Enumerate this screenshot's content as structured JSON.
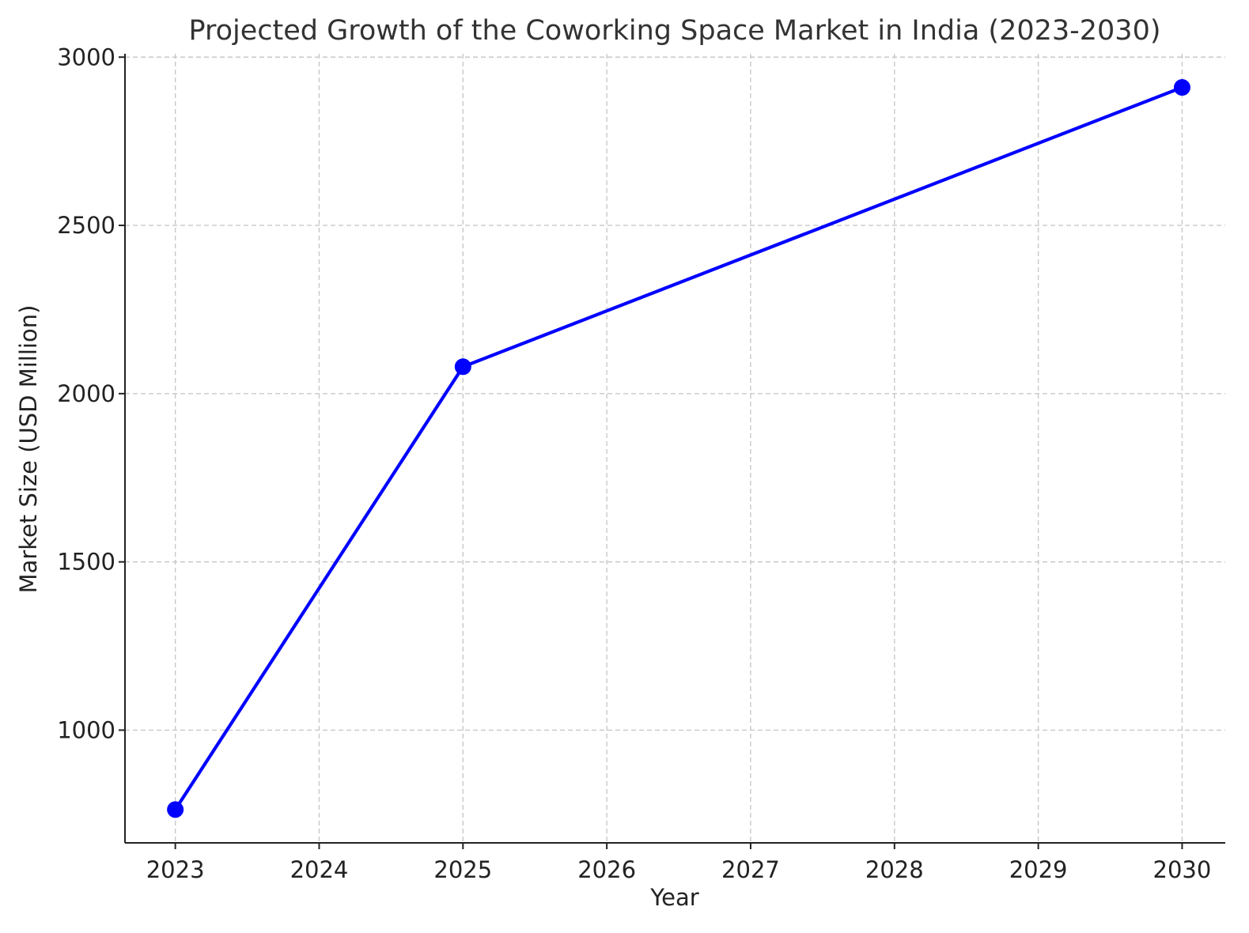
{
  "chart_data": {
    "type": "line",
    "title": "Projected Growth of the Coworking Space Market in India (2023-2030)",
    "xlabel": "Year",
    "ylabel": "Market Size (USD Million)",
    "x_ticks": [
      "2023",
      "2024",
      "2025",
      "2026",
      "2027",
      "2028",
      "2029",
      "2030"
    ],
    "y_ticks": [
      "1000",
      "1500",
      "2000",
      "2500",
      "3000"
    ],
    "xlim": [
      2022.65,
      2030.3
    ],
    "ylim": [
      665,
      3010
    ],
    "grid": true,
    "legend": "none",
    "series": [
      {
        "color": "#0000ff",
        "marker": "circle",
        "points": [
          {
            "x": 2023,
            "y": 764
          },
          {
            "x": 2025,
            "y": 2080
          },
          {
            "x": 2030,
            "y": 2910
          }
        ]
      }
    ]
  }
}
